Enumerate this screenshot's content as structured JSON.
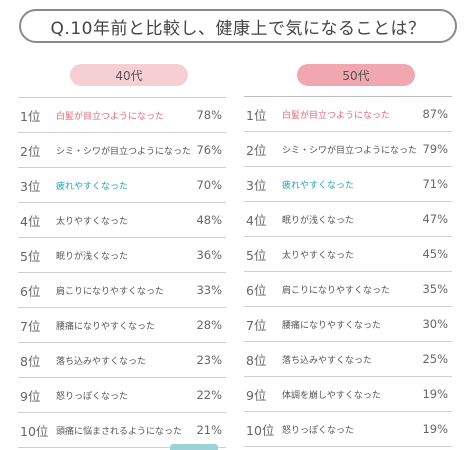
{
  "question": "Q.10年前と比較し、健康上で気になることは？",
  "chart_data": [
    {
      "type": "table",
      "title": "40代",
      "rows": [
        {
          "rank": "1位",
          "label": "白髪が目立つようになった",
          "value": "78%",
          "highlight": "pink"
        },
        {
          "rank": "2位",
          "label": "シミ・シワが目立つようになった",
          "value": "76%",
          "highlight": ""
        },
        {
          "rank": "3位",
          "label": "疲れやすくなった",
          "value": "70%",
          "highlight": "teal"
        },
        {
          "rank": "4位",
          "label": "太りやすくなった",
          "value": "48%",
          "highlight": ""
        },
        {
          "rank": "5位",
          "label": "眠りが浅くなった",
          "value": "36%",
          "highlight": ""
        },
        {
          "rank": "6位",
          "label": "肩こりになりやすくなった",
          "value": "33%",
          "highlight": ""
        },
        {
          "rank": "7位",
          "label": "腰痛になりやすくなった",
          "value": "28%",
          "highlight": ""
        },
        {
          "rank": "8位",
          "label": "落ち込みやすくなった",
          "value": "23%",
          "highlight": ""
        },
        {
          "rank": "9位",
          "label": "怒りっぽくなった",
          "value": "22%",
          "highlight": ""
        },
        {
          "rank": "10位",
          "label": "頭痛に悩まされるようになった",
          "value": "21%",
          "highlight": ""
        }
      ]
    },
    {
      "type": "table",
      "title": "50代",
      "rows": [
        {
          "rank": "1位",
          "label": "白髪が目立つようになった",
          "value": "87%",
          "highlight": "pink"
        },
        {
          "rank": "2位",
          "label": "シミ・シワが目立つようになった",
          "value": "79%",
          "highlight": ""
        },
        {
          "rank": "3位",
          "label": "疲れやすくなった",
          "value": "71%",
          "highlight": "teal"
        },
        {
          "rank": "4位",
          "label": "眠りが浅くなった",
          "value": "47%",
          "highlight": ""
        },
        {
          "rank": "5位",
          "label": "太りやすくなった",
          "value": "45%",
          "highlight": ""
        },
        {
          "rank": "6位",
          "label": "肩こりになりやすくなった",
          "value": "35%",
          "highlight": ""
        },
        {
          "rank": "7位",
          "label": "腰痛になりやすくなった",
          "value": "30%",
          "highlight": ""
        },
        {
          "rank": "8位",
          "label": "落ち込みやすくなった",
          "value": "25%",
          "highlight": ""
        },
        {
          "rank": "9位",
          "label": "体調を崩しやすくなった",
          "value": "19%",
          "highlight": ""
        },
        {
          "rank": "10位",
          "label": "怒りっぽくなった",
          "value": "19%",
          "highlight": ""
        }
      ]
    }
  ],
  "colors": {
    "pill_40": "#f6cfd4",
    "pill_50": "#f0a7b0",
    "highlight_pink": "#e2687a",
    "highlight_teal": "#25a6b0"
  }
}
